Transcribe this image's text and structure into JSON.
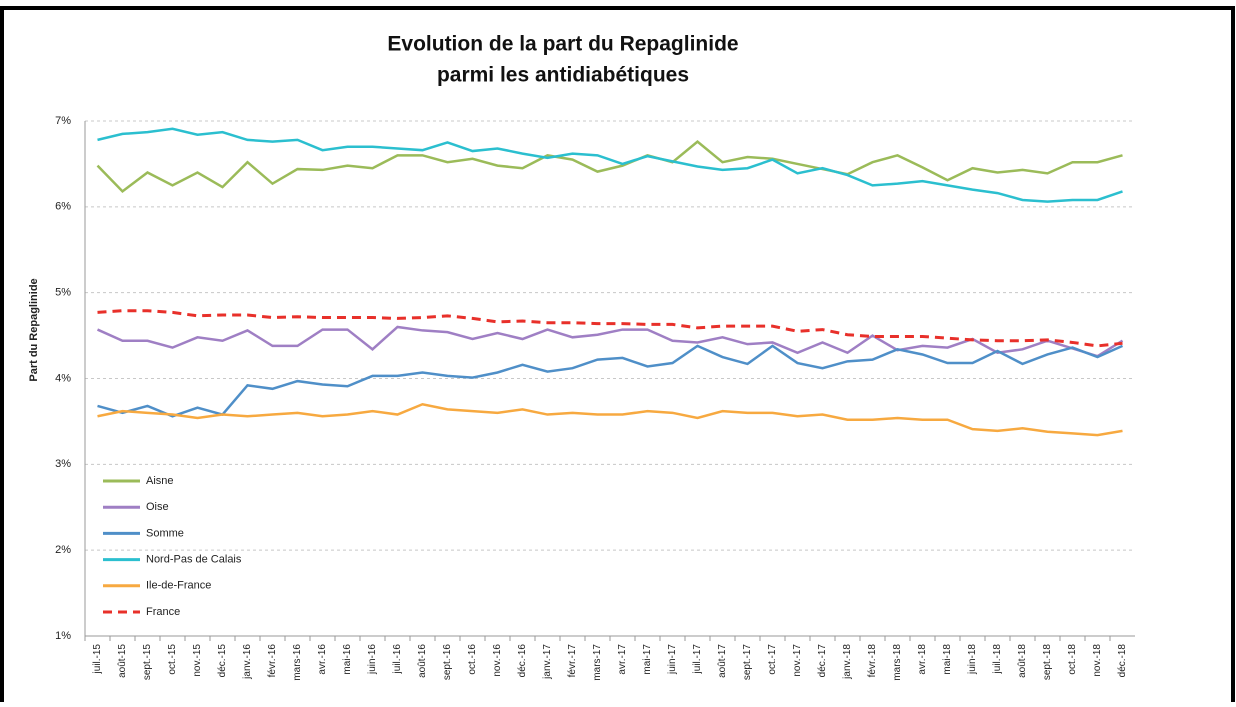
{
  "chart_data": {
    "type": "line",
    "title": [
      "Evolution de la part du Repaglinide",
      "parmi les antidiabétiques"
    ],
    "y_label": "Part du Repaglinide",
    "categories": [
      "juil.-15",
      "août-15",
      "sept.-15",
      "oct.-15",
      "nov.-15",
      "déc.-15",
      "janv.-16",
      "févr.-16",
      "mars-16",
      "avr.-16",
      "mai-16",
      "juin-16",
      "juil.-16",
      "août-16",
      "sept.-16",
      "oct.-16",
      "nov.-16",
      "déc.-16",
      "janv.-17",
      "févr.-17",
      "mars-17",
      "avr.-17",
      "mai-17",
      "juin-17",
      "juil.-17",
      "août-17",
      "sept.-17",
      "oct.-17",
      "nov.-17",
      "déc.-17",
      "janv.-18",
      "févr.-18",
      "mars-18",
      "avr.-18",
      "mai-18",
      "juin-18",
      "juil.-18",
      "août-18",
      "sept.-18",
      "oct.-18",
      "nov.-18",
      "déc.-18"
    ],
    "series": [
      {
        "name": "Aisne",
        "color": "#9bbb59",
        "dashed": false,
        "values": [
          6.48,
          6.18,
          6.4,
          6.25,
          6.4,
          6.23,
          6.52,
          6.27,
          6.44,
          6.43,
          6.48,
          6.45,
          6.6,
          6.6,
          6.52,
          6.56,
          6.48,
          6.45,
          6.6,
          6.55,
          6.41,
          6.48,
          6.6,
          6.52,
          6.76,
          6.52,
          6.58,
          6.56,
          6.5,
          6.44,
          6.38,
          6.52,
          6.6,
          6.46,
          6.31,
          6.45,
          6.4,
          6.43,
          6.39,
          6.52,
          6.52,
          6.6
        ]
      },
      {
        "name": "Oise",
        "color": "#9f7fc4",
        "dashed": false,
        "values": [
          4.57,
          4.44,
          4.44,
          4.36,
          4.48,
          4.44,
          4.56,
          4.38,
          4.38,
          4.57,
          4.57,
          4.34,
          4.6,
          4.56,
          4.54,
          4.46,
          4.53,
          4.46,
          4.57,
          4.48,
          4.51,
          4.57,
          4.57,
          4.44,
          4.42,
          4.48,
          4.4,
          4.42,
          4.3,
          4.42,
          4.3,
          4.5,
          4.33,
          4.38,
          4.36,
          4.46,
          4.3,
          4.34,
          4.44,
          4.35,
          4.26,
          4.44
        ]
      },
      {
        "name": "Somme",
        "color": "#4f8fc8",
        "dashed": false,
        "values": [
          3.68,
          3.6,
          3.68,
          3.56,
          3.66,
          3.58,
          3.92,
          3.88,
          3.97,
          3.93,
          3.91,
          4.03,
          4.03,
          4.07,
          4.03,
          4.01,
          4.07,
          4.16,
          4.08,
          4.12,
          4.22,
          4.24,
          4.14,
          4.18,
          4.38,
          4.25,
          4.17,
          4.38,
          4.18,
          4.12,
          4.2,
          4.22,
          4.34,
          4.28,
          4.18,
          4.18,
          4.32,
          4.17,
          4.28,
          4.36,
          4.25,
          4.38
        ]
      },
      {
        "name": "Nord-Pas de Calais",
        "color": "#2bbfcf",
        "dashed": false,
        "values": [
          6.78,
          6.85,
          6.87,
          6.91,
          6.84,
          6.87,
          6.78,
          6.76,
          6.78,
          6.66,
          6.7,
          6.7,
          6.68,
          6.66,
          6.75,
          6.65,
          6.68,
          6.62,
          6.57,
          6.62,
          6.6,
          6.5,
          6.59,
          6.53,
          6.47,
          6.43,
          6.45,
          6.55,
          6.39,
          6.45,
          6.37,
          6.25,
          6.27,
          6.3,
          6.25,
          6.2,
          6.16,
          6.08,
          6.06,
          6.08,
          6.08,
          6.18
        ]
      },
      {
        "name": "Ile-de-France",
        "color": "#f7a940",
        "dashed": false,
        "values": [
          3.56,
          3.62,
          3.6,
          3.58,
          3.54,
          3.58,
          3.56,
          3.58,
          3.6,
          3.56,
          3.58,
          3.62,
          3.58,
          3.7,
          3.64,
          3.62,
          3.6,
          3.64,
          3.58,
          3.6,
          3.58,
          3.58,
          3.62,
          3.6,
          3.54,
          3.62,
          3.6,
          3.6,
          3.56,
          3.58,
          3.52,
          3.52,
          3.54,
          3.52,
          3.52,
          3.41,
          3.39,
          3.42,
          3.38,
          3.36,
          3.34,
          3.39
        ]
      },
      {
        "name": "France",
        "color": "#e8302a",
        "dashed": true,
        "values": [
          4.77,
          4.79,
          4.79,
          4.77,
          4.73,
          4.74,
          4.74,
          4.71,
          4.72,
          4.71,
          4.71,
          4.71,
          4.7,
          4.71,
          4.73,
          4.7,
          4.66,
          4.67,
          4.65,
          4.65,
          4.64,
          4.64,
          4.63,
          4.63,
          4.59,
          4.61,
          4.61,
          4.61,
          4.55,
          4.57,
          4.51,
          4.49,
          4.49,
          4.49,
          4.47,
          4.45,
          4.44,
          4.44,
          4.45,
          4.42,
          4.38,
          4.41
        ]
      }
    ],
    "ylim": [
      1,
      7
    ],
    "yticks": [
      {
        "value": 1,
        "label": "1%"
      },
      {
        "value": 2,
        "label": "2%"
      },
      {
        "value": 3,
        "label": "3%"
      },
      {
        "value": 4,
        "label": "4%"
      },
      {
        "value": 5,
        "label": "5%"
      },
      {
        "value": 6,
        "label": "6%"
      },
      {
        "value": 7,
        "label": "7%"
      }
    ],
    "grid": true,
    "legend": "lower-left"
  }
}
